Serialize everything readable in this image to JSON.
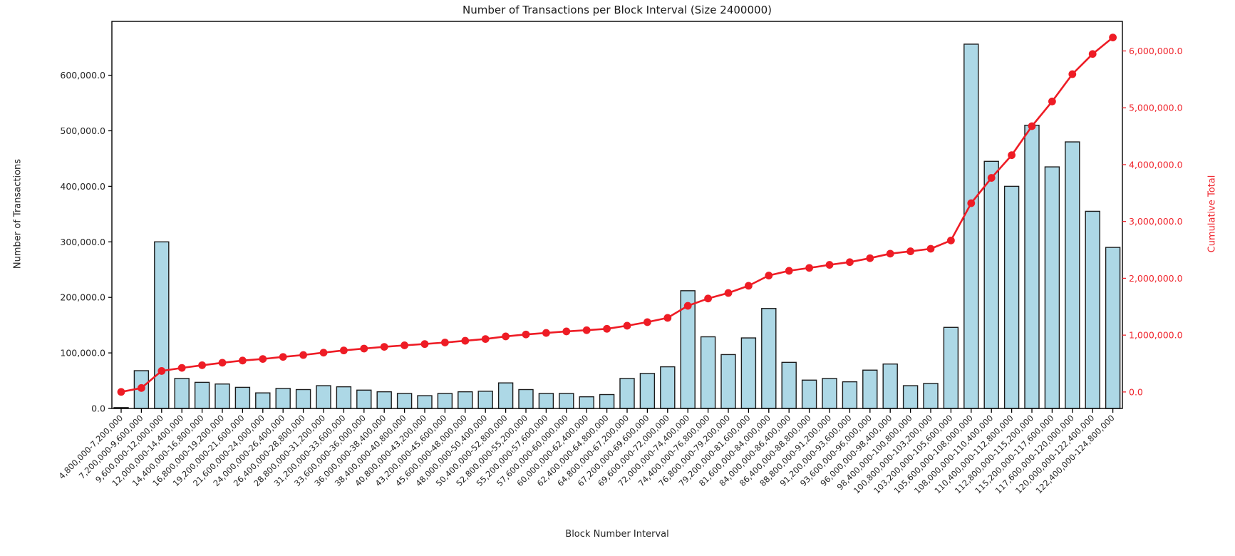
{
  "chart_data": {
    "type": "bar",
    "title": "Number of Transactions per Block Interval (Size 2400000)",
    "xlabel": "Block Number Interval",
    "ylabel": "Number of Transactions",
    "ylabel_right": "Cumulative Total",
    "legend_position": "none",
    "grid": false,
    "categories": [
      "4,800,000-7,200,000",
      "7,200,000-9,600,000",
      "9,600,000-12,000,000",
      "12,000,000-14,400,000",
      "14,400,000-16,800,000",
      "16,800,000-19,200,000",
      "19,200,000-21,600,000",
      "21,600,000-24,000,000",
      "24,000,000-26,400,000",
      "26,400,000-28,800,000",
      "28,800,000-31,200,000",
      "31,200,000-33,600,000",
      "33,600,000-36,000,000",
      "36,000,000-38,400,000",
      "38,400,000-40,800,000",
      "40,800,000-43,200,000",
      "43,200,000-45,600,000",
      "45,600,000-48,000,000",
      "48,000,000-50,400,000",
      "50,400,000-52,800,000",
      "52,800,000-55,200,000",
      "55,200,000-57,600,000",
      "57,600,000-60,000,000",
      "60,000,000-62,400,000",
      "62,400,000-64,800,000",
      "64,800,000-67,200,000",
      "67,200,000-69,600,000",
      "69,600,000-72,000,000",
      "72,000,000-74,400,000",
      "74,400,000-76,800,000",
      "76,800,000-79,200,000",
      "79,200,000-81,600,000",
      "81,600,000-84,000,000",
      "84,000,000-86,400,000",
      "86,400,000-88,800,000",
      "88,800,000-91,200,000",
      "91,200,000-93,600,000",
      "93,600,000-96,000,000",
      "96,000,000-98,400,000",
      "98,400,000-100,800,000",
      "100,800,000-103,200,000",
      "103,200,000-105,600,000",
      "105,600,000-108,000,000",
      "108,000,000-110,400,000",
      "110,400,000-112,800,000",
      "112,800,000-115,200,000",
      "115,200,000-117,600,000",
      "117,600,000-120,000,000",
      "120,000,000-122,400,000",
      "122,400,000-124,800,000"
    ],
    "series": [
      {
        "name": "Number of Transactions",
        "type": "bar",
        "axis": "left",
        "values": [
          1500,
          68000,
          300000,
          54000,
          47000,
          44000,
          38000,
          28000,
          36000,
          34000,
          41000,
          39000,
          33000,
          30000,
          27000,
          23000,
          27000,
          30000,
          31000,
          46000,
          34000,
          27000,
          27000,
          21000,
          25000,
          54000,
          63000,
          75000,
          212000,
          129000,
          97000,
          127000,
          180000,
          83000,
          51000,
          54000,
          48000,
          69000,
          80000,
          41000,
          45000,
          146000,
          656000,
          445000,
          400000,
          510000,
          435000,
          480000,
          355000,
          290000
        ]
      },
      {
        "name": "Cumulative Total",
        "type": "line",
        "axis": "right",
        "values": [
          1500,
          69500,
          369500,
          423500,
          470500,
          514500,
          552500,
          580500,
          616500,
          650500,
          691500,
          730500,
          763500,
          793500,
          820500,
          843500,
          870500,
          900500,
          931500,
          977500,
          1011500,
          1038500,
          1065500,
          1086500,
          1111500,
          1165500,
          1228500,
          1303500,
          1515500,
          1644500,
          1741500,
          1868500,
          2048500,
          2131500,
          2182500,
          2236500,
          2284500,
          2353500,
          2433500,
          2474500,
          2519500,
          2665500,
          3321500,
          3766500,
          4166500,
          4676500,
          5111500,
          5591500,
          5946500,
          6236500
        ]
      }
    ],
    "left_axis": {
      "ylim": [
        0,
        697000
      ],
      "tick_values": [
        0,
        100000,
        200000,
        300000,
        400000,
        500000,
        600000
      ],
      "tick_labels": [
        "0.0",
        "100,000.0",
        "200,000.0",
        "300,000.0",
        "400,000.0",
        "500,000.0",
        "600,000.0"
      ]
    },
    "right_axis": {
      "ylim": [
        -290000,
        6520000
      ],
      "tick_values": [
        0,
        1000000,
        2000000,
        3000000,
        4000000,
        5000000,
        6000000
      ],
      "tick_labels": [
        "0.0",
        "1,000,000.0",
        "2,000,000.0",
        "3,000,000.0",
        "4,000,000.0",
        "5,000,000.0",
        "6,000,000.0"
      ]
    },
    "colors": {
      "bar_fill": "#ADD8E6",
      "bar_edge": "#1b1b1b",
      "line_red": "#ee1c25",
      "red_text": "#f0262e",
      "axis_text": "#262626",
      "spine": "#000000",
      "background": "#ffffff"
    }
  }
}
